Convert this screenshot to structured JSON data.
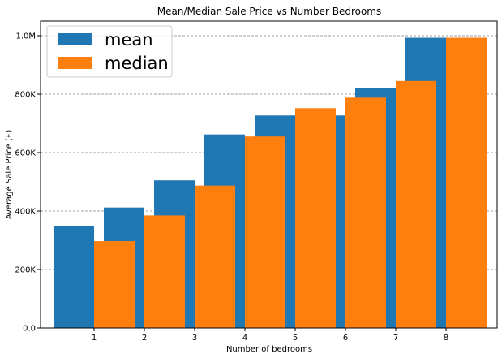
{
  "chart_data": {
    "type": "bar",
    "title": "Mean/Median Sale Price vs Number Bedrooms",
    "xlabel": "Number of bedrooms",
    "ylabel": "Average Sale Price (£)",
    "categories": [
      "1",
      "2",
      "3",
      "4",
      "5",
      "6",
      "7",
      "8"
    ],
    "series": [
      {
        "name": "mean",
        "color": "#1f77b4",
        "values": [
          348000,
          412000,
          505000,
          662000,
          727000,
          727000,
          822000,
          993000
        ]
      },
      {
        "name": "median",
        "color": "#ff7f0e",
        "values": [
          297000,
          385000,
          487000,
          655000,
          752000,
          788000,
          845000,
          993000
        ]
      }
    ],
    "ylim": [
      0,
      1050000
    ],
    "yticks": [
      0,
      200000,
      400000,
      600000,
      800000,
      1000000
    ],
    "ytick_labels": [
      "0.0",
      "200K",
      "400K",
      "600K",
      "800K",
      "1.0M"
    ],
    "grid": "y-dashed",
    "legend": "top-left"
  }
}
